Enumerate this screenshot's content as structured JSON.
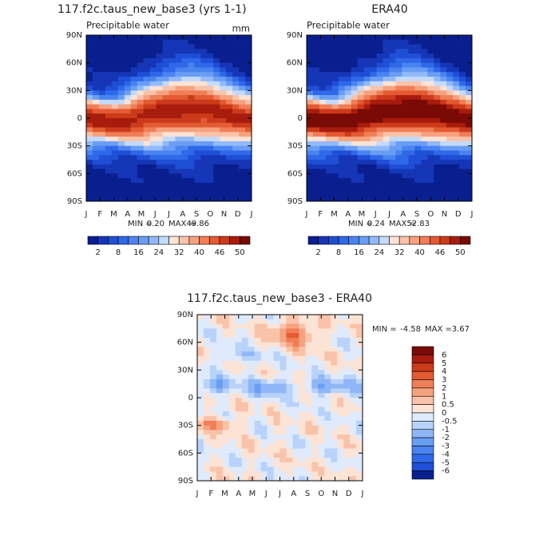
{
  "panels": [
    {
      "title": "117.f2c.taus_new_base3 (yrs 1-1)",
      "subtitle": "Precipitable water",
      "units": "mm",
      "stats": {
        "min_label": "MIN =",
        "min": "0.20",
        "max_label": "MAX =",
        "max": "49.86"
      }
    },
    {
      "title": "ERA40",
      "subtitle": "Precipitable water",
      "stats": {
        "min_label": "MIN =",
        "min": "0.24",
        "max_label": "MAX =",
        "max": "52.83"
      }
    },
    {
      "title": "117.f2c.taus_new_base3 - ERA40",
      "stats": {
        "min_label": "MIN =",
        "min": "-4.58",
        "max_label": "MAX =",
        "max": "3.67"
      }
    }
  ],
  "y_labels": [
    "90N",
    "60N",
    "30N",
    "0",
    "30S",
    "60S",
    "90S"
  ],
  "x_labels": [
    "J",
    "F",
    "M",
    "A",
    "M",
    "J",
    "J",
    "A",
    "S",
    "O",
    "N",
    "D",
    "J"
  ],
  "colorbar_fields": {
    "colors": [
      "#0a1f8f",
      "#1636b8",
      "#1f4fd6",
      "#2f68e8",
      "#4a84f0",
      "#6a9ef5",
      "#92baf8",
      "#c4dafb",
      "#fbe3d6",
      "#f9c3aa",
      "#f6a27f",
      "#f07e57",
      "#e35a33",
      "#cc3a1c",
      "#a81c0d",
      "#7a0a05"
    ],
    "labels": [
      "2",
      "8",
      "16",
      "24",
      "32",
      "40",
      "46",
      "50"
    ]
  },
  "colorbar_diff": {
    "colors": [
      "#7a0a05",
      "#a81c0d",
      "#cc3a1c",
      "#e35a33",
      "#f07e57",
      "#f6a27f",
      "#f9c3aa",
      "#fbe3d6",
      "#dfeafc",
      "#b8d2fa",
      "#8fb6f6",
      "#6a9ef5",
      "#4a84f0",
      "#2f68e8",
      "#1f4fd6",
      "#0a1f8f"
    ],
    "labels": [
      "6",
      "5",
      "4",
      "3",
      "2",
      "1",
      "0.5",
      "0",
      "-0.5",
      "-1",
      "-2",
      "-3",
      "-4",
      "-5",
      "-6"
    ]
  }
}
